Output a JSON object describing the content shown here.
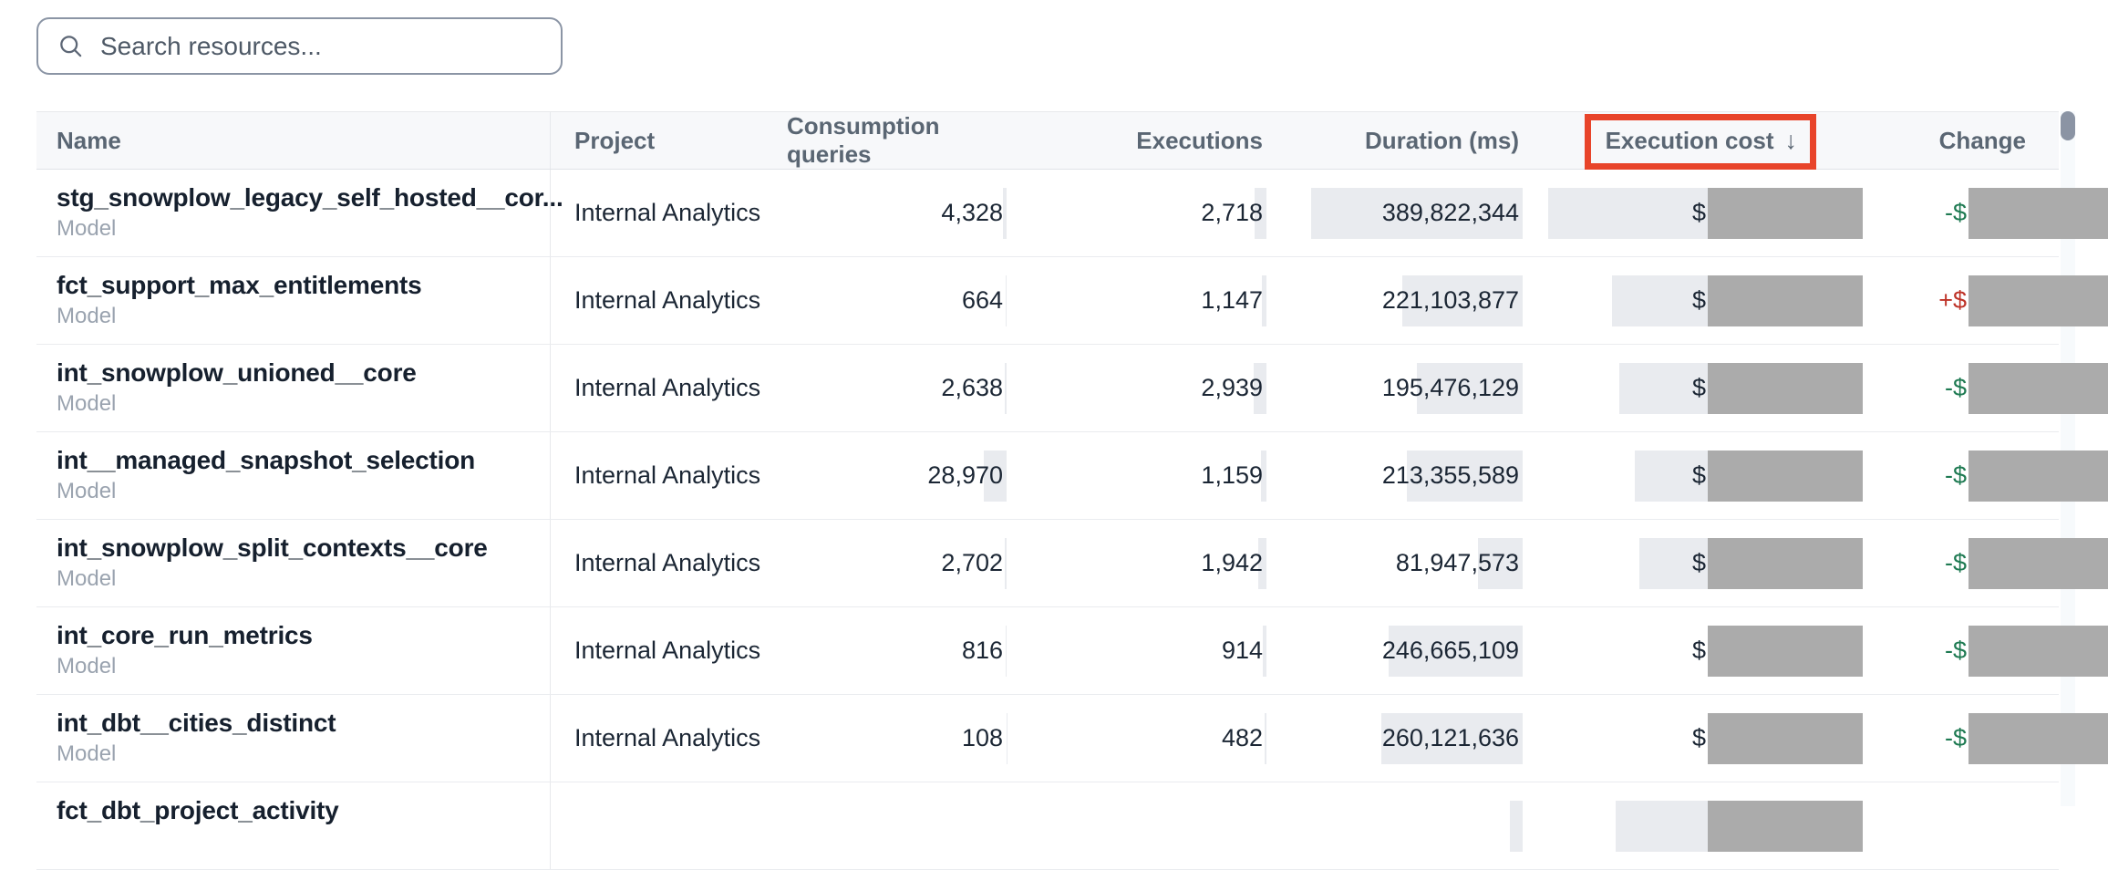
{
  "search": {
    "placeholder": "Search resources..."
  },
  "colors": {
    "annotation_box": "#E8442A",
    "redaction": "#ABABAB",
    "decrease_text": "#1E7A52",
    "increase_text": "#BE3328",
    "value_highlight_bar": "#E9EBEF",
    "header_background": "#F7F8FA"
  },
  "annotation": {
    "shape": "rectangle",
    "around": "Execution cost column header"
  },
  "table": {
    "headers": {
      "name": "Name",
      "project": "Project",
      "consumption": "Consumption queries",
      "executions": "Executions",
      "duration": "Duration (ms)",
      "cost": "Execution cost",
      "cost_sort_arrow": "↓",
      "change": "Change"
    },
    "rows": [
      {
        "name": "stg_snowplow_legacy_self_hosted__cor...",
        "type": "Model",
        "project": "Internal Analytics",
        "consumption": "4,328",
        "executions": "2,718",
        "duration": "389,822,344",
        "cost_prefix": "$",
        "cost_redacted": true,
        "change_prefix": "-$",
        "change_direction": "down",
        "change_redacted": true,
        "bars": {
          "consumption": 0.149,
          "executions": 0.925,
          "duration": 1.0,
          "cost": 1.0
        }
      },
      {
        "name": "fct_support_max_entitlements",
        "type": "Model",
        "project": "Internal Analytics",
        "consumption": "664",
        "executions": "1,147",
        "duration": "221,103,877",
        "cost_prefix": "$",
        "cost_redacted": true,
        "change_prefix": "+$",
        "change_direction": "up",
        "change_redacted": true,
        "bars": {
          "consumption": 0.023,
          "executions": 0.39,
          "duration": 0.567,
          "cost": 0.49
        }
      },
      {
        "name": "int_snowplow_unioned__core",
        "type": "Model",
        "project": "Internal Analytics",
        "consumption": "2,638",
        "executions": "2,939",
        "duration": "195,476,129",
        "cost_prefix": "$",
        "cost_redacted": true,
        "change_prefix": "-$",
        "change_direction": "down",
        "change_redacted": true,
        "bars": {
          "consumption": 0.091,
          "executions": 1.0,
          "duration": 0.501,
          "cost": 0.43
        }
      },
      {
        "name": "int__managed_snapshot_selection",
        "type": "Model",
        "project": "Internal Analytics",
        "consumption": "28,970",
        "executions": "1,159",
        "duration": "213,355,589",
        "cost_prefix": "$",
        "cost_redacted": true,
        "change_prefix": "-$",
        "change_direction": "down",
        "change_redacted": true,
        "bars": {
          "consumption": 1.0,
          "executions": 0.394,
          "duration": 0.547,
          "cost": 0.31
        }
      },
      {
        "name": "int_snowplow_split_contexts__core",
        "type": "Model",
        "project": "Internal Analytics",
        "consumption": "2,702",
        "executions": "1,942",
        "duration": "81,947,573",
        "cost_prefix": "$",
        "cost_redacted": true,
        "change_prefix": "-$",
        "change_direction": "down",
        "change_redacted": true,
        "bars": {
          "consumption": 0.093,
          "executions": 0.661,
          "duration": 0.21,
          "cost": 0.27
        }
      },
      {
        "name": "int_core_run_metrics",
        "type": "Model",
        "project": "Internal Analytics",
        "consumption": "816",
        "executions": "914",
        "duration": "246,665,109",
        "cost_prefix": "$",
        "cost_redacted": true,
        "change_prefix": "-$",
        "change_direction": "down",
        "change_redacted": true,
        "bars": {
          "consumption": 0.028,
          "executions": 0.311,
          "duration": 0.633,
          "cost": 0.0
        }
      },
      {
        "name": "int_dbt__cities_distinct",
        "type": "Model",
        "project": "Internal Analytics",
        "consumption": "108",
        "executions": "482",
        "duration": "260,121,636",
        "cost_prefix": "$",
        "cost_redacted": true,
        "change_prefix": "-$",
        "change_direction": "down",
        "change_redacted": true,
        "bars": {
          "consumption": 0.004,
          "executions": 0.164,
          "duration": 0.667,
          "cost": 0.0
        }
      }
    ],
    "partial_row": {
      "name": "fct_dbt_project_activity",
      "bars": {
        "duration": 0.06,
        "cost": 0.46
      }
    }
  }
}
